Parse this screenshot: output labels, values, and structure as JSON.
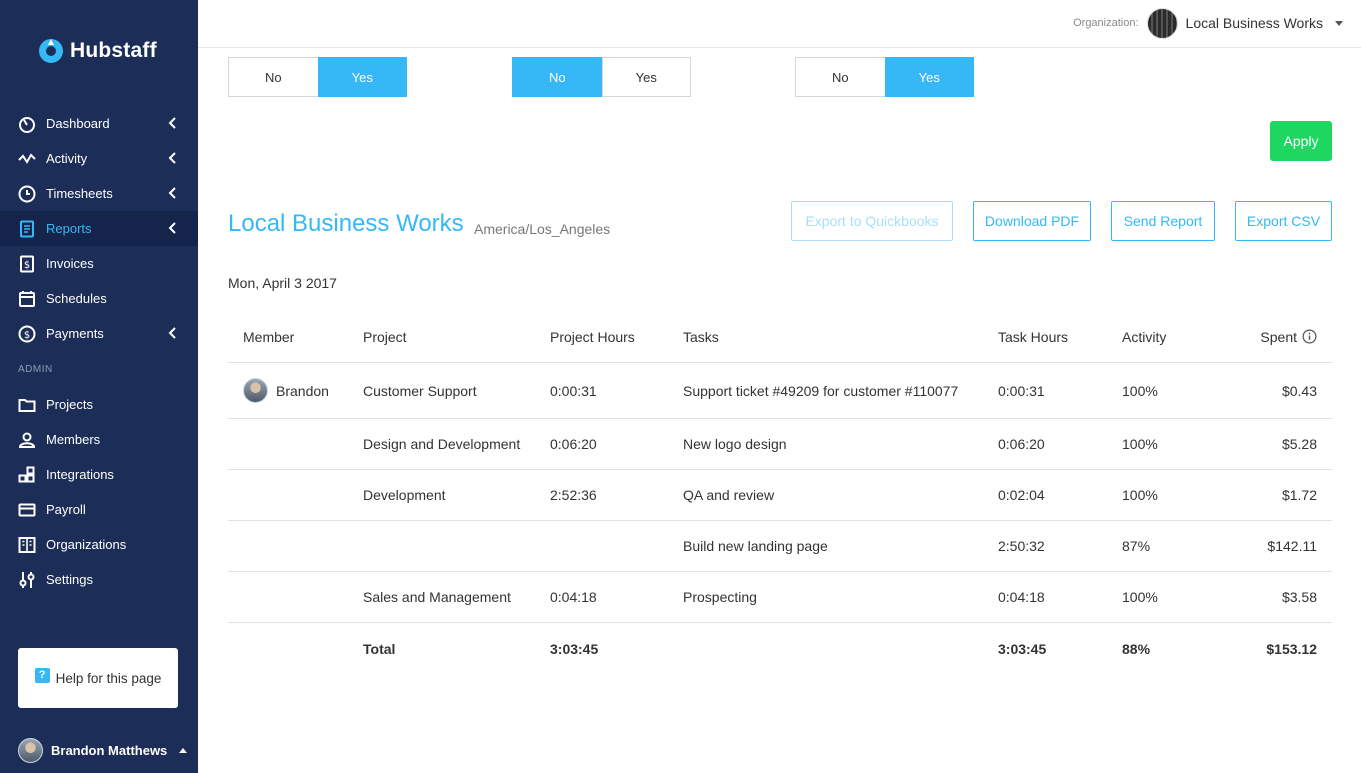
{
  "app": {
    "brand": "Hubstaff"
  },
  "sidebar": {
    "items": [
      {
        "label": "Dashboard",
        "icon": "dashboard-icon",
        "chevron": true
      },
      {
        "label": "Activity",
        "icon": "activity-icon",
        "chevron": true
      },
      {
        "label": "Timesheets",
        "icon": "clock-icon",
        "chevron": true
      },
      {
        "label": "Reports",
        "icon": "reports-icon",
        "chevron": true,
        "active": true
      },
      {
        "label": "Invoices",
        "icon": "invoice-icon",
        "chevron": false
      },
      {
        "label": "Schedules",
        "icon": "calendar-icon",
        "chevron": false
      },
      {
        "label": "Payments",
        "icon": "dollar-icon",
        "chevron": true
      }
    ],
    "admin_label": "ADMIN",
    "admin_items": [
      {
        "label": "Projects",
        "icon": "folder-icon"
      },
      {
        "label": "Members",
        "icon": "user-icon"
      },
      {
        "label": "Integrations",
        "icon": "integrations-icon"
      },
      {
        "label": "Payroll",
        "icon": "credit-card-icon"
      },
      {
        "label": "Organizations",
        "icon": "building-icon"
      },
      {
        "label": "Settings",
        "icon": "sliders-icon"
      }
    ],
    "help_label": "Help for this page",
    "user_name": "Brandon Matthews"
  },
  "org_bar": {
    "label": "Organization:",
    "name": "Local Business Works"
  },
  "toggles": [
    {
      "no": "No",
      "yes": "Yes",
      "selected": "yes"
    },
    {
      "no": "No",
      "yes": "Yes",
      "selected": "no"
    },
    {
      "no": "No",
      "yes": "Yes",
      "selected": "yes"
    }
  ],
  "apply_label": "Apply",
  "report": {
    "title": "Local Business Works",
    "timezone": "America/Los_Angeles",
    "date": "Mon, April 3 2017",
    "buttons": {
      "quickbooks": "Export to Quickbooks",
      "pdf": "Download PDF",
      "send": "Send Report",
      "csv": "Export CSV"
    },
    "columns": {
      "member": "Member",
      "project": "Project",
      "project_hours": "Project Hours",
      "tasks": "Tasks",
      "task_hours": "Task Hours",
      "activity": "Activity",
      "spent": "Spent"
    },
    "rows": [
      {
        "member": "Brandon",
        "project": "Customer Support",
        "project_hours": "0:00:31",
        "task": "Support ticket #49209 for customer #110077",
        "task_hours": "0:00:31",
        "activity": "100%",
        "spent": "$0.43"
      },
      {
        "member": "",
        "project": "Design and Development",
        "project_hours": "0:06:20",
        "task": "New logo design",
        "task_hours": "0:06:20",
        "activity": "100%",
        "spent": "$5.28"
      },
      {
        "member": "",
        "project": "Development",
        "project_hours": "2:52:36",
        "task": "QA and review",
        "task_hours": "0:02:04",
        "activity": "100%",
        "spent": "$1.72"
      },
      {
        "member": "",
        "project": "",
        "project_hours": "",
        "task": "Build new landing page",
        "task_hours": "2:50:32",
        "activity": "87%",
        "spent": "$142.11"
      },
      {
        "member": "",
        "project": "Sales and Management",
        "project_hours": "0:04:18",
        "task": "Prospecting",
        "task_hours": "0:04:18",
        "activity": "100%",
        "spent": "$3.58"
      }
    ],
    "total": {
      "label": "Total",
      "project_hours": "3:03:45",
      "task_hours": "3:03:45",
      "activity": "88%",
      "spent": "$153.12"
    }
  }
}
